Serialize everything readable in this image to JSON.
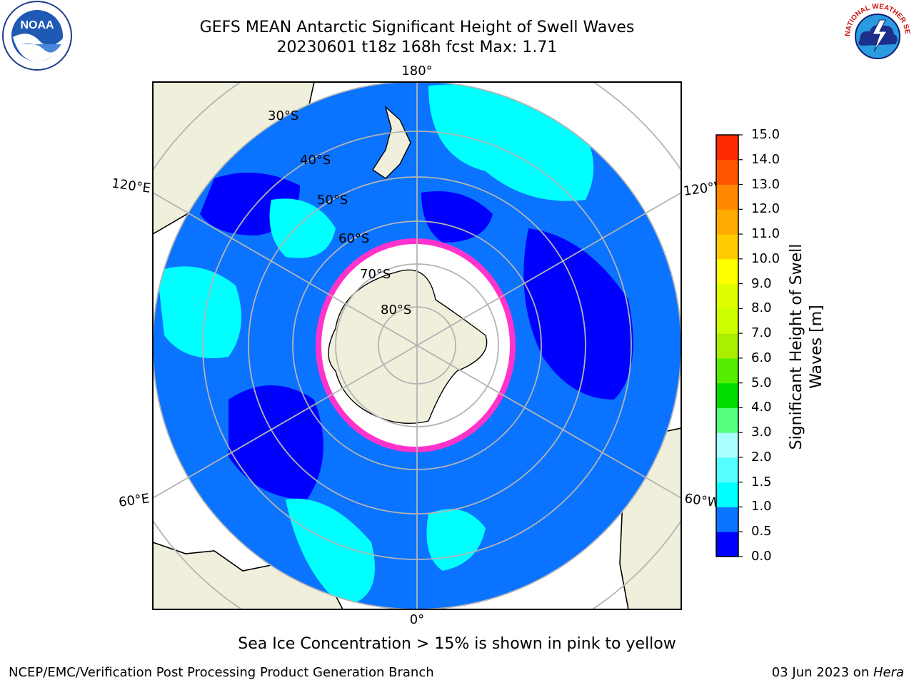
{
  "title_line1": "GEFS MEAN Antarctic Significant Height of Swell Waves",
  "title_line2": "20230601 t18z 168h fcst   Max: 1.71",
  "map": {
    "projection": "south-polar-stereographic",
    "lon_labels": [
      "180°",
      "0°",
      "120°E",
      "60°E",
      "120°W",
      "60°W"
    ],
    "lat_labels": [
      "30°S",
      "40°S",
      "50°S",
      "60°S",
      "70°S",
      "80°S"
    ],
    "colors": {
      "land": "#efefdc",
      "outside": "#ffffff",
      "wave_0_0_5": "#0000ff",
      "wave_0_5_1_0": "#0a73ff",
      "wave_1_0_1_5": "#00ffff",
      "sea_ice_edge": "#ff33cc",
      "graticule": "#b4b4b4"
    }
  },
  "colorbar": {
    "label": "Significant Height of Swell Waves [m]",
    "ticks": [
      "0.0",
      "0.5",
      "1.0",
      "1.5",
      "2.0",
      "3.0",
      "4.0",
      "5.0",
      "6.0",
      "7.0",
      "8.0",
      "9.0",
      "10.0",
      "11.0",
      "12.0",
      "13.0",
      "14.0",
      "15.0"
    ],
    "colors": [
      "#0000ff",
      "#0a73ff",
      "#00ffff",
      "#55ffff",
      "#aaffff",
      "#55ff80",
      "#00dd00",
      "#55ee00",
      "#aaee00",
      "#ccff00",
      "#ddff00",
      "#ffff00",
      "#ffcc00",
      "#ffaa00",
      "#ff8800",
      "#ff5500",
      "#ff2a00",
      "#ff0000"
    ]
  },
  "ice_note": "Sea Ice Concentration > 15% is shown in pink to yellow",
  "footer_left": "NCEP/EMC/Verification Post Processing Product Generation Branch",
  "footer_right_date": "03 Jun 2023 on ",
  "footer_right_host": "Hera",
  "logos": {
    "noaa_text": "NOAA",
    "nws_text": "NATIONAL WEATHER SERVICE"
  }
}
